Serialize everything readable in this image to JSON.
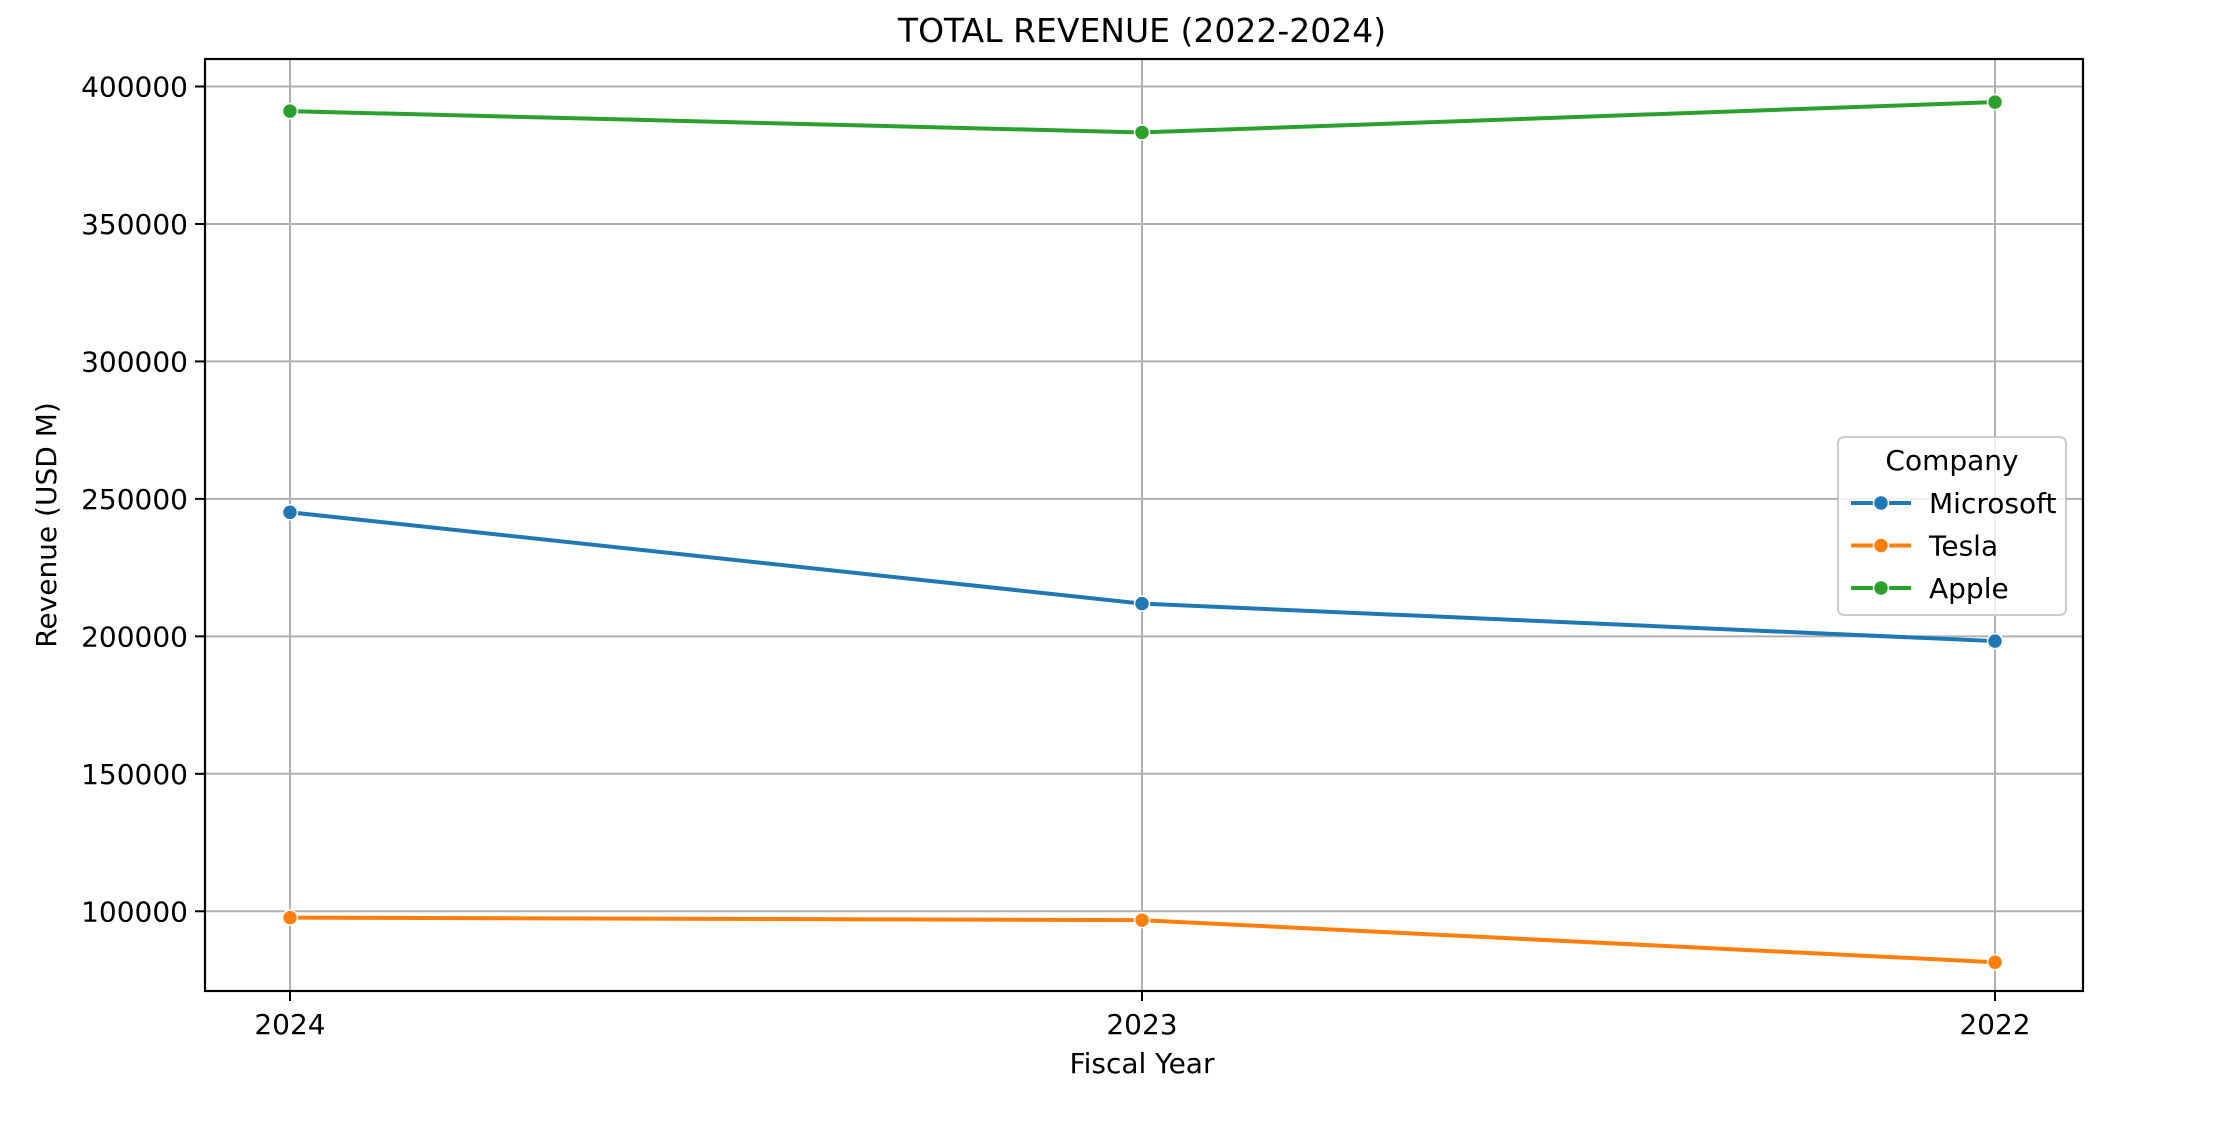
{
  "chart_data": {
    "type": "line",
    "title": "TOTAL REVENUE (2022-2024)",
    "xlabel": "Fiscal Year",
    "ylabel": "Revenue (USD M)",
    "categories": [
      "2024",
      "2023",
      "2022"
    ],
    "ylim": [
      71000,
      410000
    ],
    "yticks": [
      100000,
      150000,
      200000,
      250000,
      300000,
      350000,
      400000
    ],
    "ytick_labels": [
      "100000",
      "150000",
      "200000",
      "250000",
      "300000",
      "350000",
      "400000"
    ],
    "grid": true,
    "legend": {
      "title": "Company",
      "placement": "center-right"
    },
    "series": [
      {
        "name": "Microsoft",
        "color": "#1f77b4",
        "values": [
          245122,
          211915,
          198270
        ]
      },
      {
        "name": "Tesla",
        "color": "#ff7f0e",
        "values": [
          97690,
          96773,
          81462
        ]
      },
      {
        "name": "Apple",
        "color": "#2ca02c",
        "values": [
          391035,
          383285,
          394328
        ]
      }
    ]
  }
}
